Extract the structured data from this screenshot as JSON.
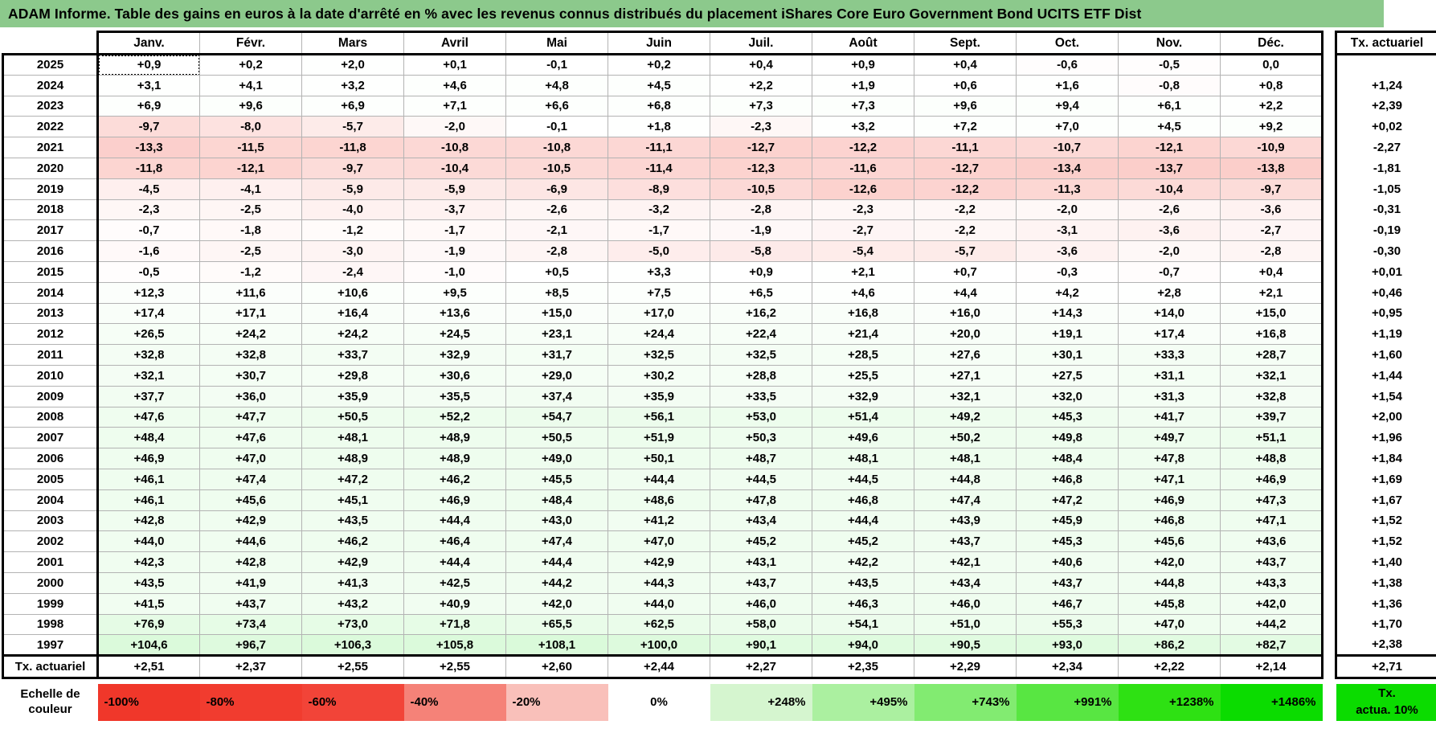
{
  "title": "ADAM Informe. Table des gains en euros à la date d'arrêté en % avec les revenus connus distribués du placement iShares Core Euro Government Bond UCITS ETF Dist",
  "columns": [
    "Janv.",
    "Févr.",
    "Mars",
    "Avril",
    "Mai",
    "Juin",
    "Juil.",
    "Août",
    "Sept.",
    "Oct.",
    "Nov.",
    "Déc."
  ],
  "sidebar": {
    "header": "Tx. actuariel"
  },
  "selected_cell": {
    "row": 0,
    "col": 0
  },
  "rows": [
    {
      "year": "2025",
      "values": [
        "+0,9",
        "+0,2",
        "+2,0",
        "+0,1",
        "-0,1",
        "+0,2",
        "+0,4",
        "+0,9",
        "+0,4",
        "-0,6",
        "-0,5",
        "0,0"
      ],
      "tx": ""
    },
    {
      "year": "2024",
      "values": [
        "+3,1",
        "+4,1",
        "+3,2",
        "+4,6",
        "+4,8",
        "+4,5",
        "+2,2",
        "+1,9",
        "+0,6",
        "+1,6",
        "-0,8",
        "+0,8"
      ],
      "tx": "+1,24"
    },
    {
      "year": "2023",
      "values": [
        "+6,9",
        "+9,6",
        "+6,9",
        "+7,1",
        "+6,6",
        "+6,8",
        "+7,3",
        "+7,3",
        "+9,6",
        "+9,4",
        "+6,1",
        "+2,2"
      ],
      "tx": "+2,39"
    },
    {
      "year": "2022",
      "values": [
        "-9,7",
        "-8,0",
        "-5,7",
        "-2,0",
        "-0,1",
        "+1,8",
        "-2,3",
        "+3,2",
        "+7,2",
        "+7,0",
        "+4,5",
        "+9,2"
      ],
      "tx": "+0,02"
    },
    {
      "year": "2021",
      "values": [
        "-13,3",
        "-11,5",
        "-11,8",
        "-10,8",
        "-10,8",
        "-11,1",
        "-12,7",
        "-12,2",
        "-11,1",
        "-10,7",
        "-12,1",
        "-10,9"
      ],
      "tx": "-2,27"
    },
    {
      "year": "2020",
      "values": [
        "-11,8",
        "-12,1",
        "-9,7",
        "-10,4",
        "-10,5",
        "-11,4",
        "-12,3",
        "-11,6",
        "-12,7",
        "-13,4",
        "-13,7",
        "-13,8"
      ],
      "tx": "-1,81"
    },
    {
      "year": "2019",
      "values": [
        "-4,5",
        "-4,1",
        "-5,9",
        "-5,9",
        "-6,9",
        "-8,9",
        "-10,5",
        "-12,6",
        "-12,2",
        "-11,3",
        "-10,4",
        "-9,7"
      ],
      "tx": "-1,05"
    },
    {
      "year": "2018",
      "values": [
        "-2,3",
        "-2,5",
        "-4,0",
        "-3,7",
        "-2,6",
        "-3,2",
        "-2,8",
        "-2,3",
        "-2,2",
        "-2,0",
        "-2,6",
        "-3,6"
      ],
      "tx": "-0,31"
    },
    {
      "year": "2017",
      "values": [
        "-0,7",
        "-1,8",
        "-1,2",
        "-1,7",
        "-2,1",
        "-1,7",
        "-1,9",
        "-2,7",
        "-2,2",
        "-3,1",
        "-3,6",
        "-2,7"
      ],
      "tx": "-0,19"
    },
    {
      "year": "2016",
      "values": [
        "-1,6",
        "-2,5",
        "-3,0",
        "-1,9",
        "-2,8",
        "-5,0",
        "-5,8",
        "-5,4",
        "-5,7",
        "-3,6",
        "-2,0",
        "-2,8"
      ],
      "tx": "-0,30"
    },
    {
      "year": "2015",
      "values": [
        "-0,5",
        "-1,2",
        "-2,4",
        "-1,0",
        "+0,5",
        "+3,3",
        "+0,9",
        "+2,1",
        "+0,7",
        "-0,3",
        "-0,7",
        "+0,4"
      ],
      "tx": "+0,01"
    },
    {
      "year": "2014",
      "values": [
        "+12,3",
        "+11,6",
        "+10,6",
        "+9,5",
        "+8,5",
        "+7,5",
        "+6,5",
        "+4,6",
        "+4,4",
        "+4,2",
        "+2,8",
        "+2,1"
      ],
      "tx": "+0,46"
    },
    {
      "year": "2013",
      "values": [
        "+17,4",
        "+17,1",
        "+16,4",
        "+13,6",
        "+15,0",
        "+17,0",
        "+16,2",
        "+16,8",
        "+16,0",
        "+14,3",
        "+14,0",
        "+15,0"
      ],
      "tx": "+0,95"
    },
    {
      "year": "2012",
      "values": [
        "+26,5",
        "+24,2",
        "+24,2",
        "+24,5",
        "+23,1",
        "+24,4",
        "+22,4",
        "+21,4",
        "+20,0",
        "+19,1",
        "+17,4",
        "+16,8"
      ],
      "tx": "+1,19"
    },
    {
      "year": "2011",
      "values": [
        "+32,8",
        "+32,8",
        "+33,7",
        "+32,9",
        "+31,7",
        "+32,5",
        "+32,5",
        "+28,5",
        "+27,6",
        "+30,1",
        "+33,3",
        "+28,7"
      ],
      "tx": "+1,60"
    },
    {
      "year": "2010",
      "values": [
        "+32,1",
        "+30,7",
        "+29,8",
        "+30,6",
        "+29,0",
        "+30,2",
        "+28,8",
        "+25,5",
        "+27,1",
        "+27,5",
        "+31,1",
        "+32,1"
      ],
      "tx": "+1,44"
    },
    {
      "year": "2009",
      "values": [
        "+37,7",
        "+36,0",
        "+35,9",
        "+35,5",
        "+37,4",
        "+35,9",
        "+33,5",
        "+32,9",
        "+32,1",
        "+32,0",
        "+31,3",
        "+32,8"
      ],
      "tx": "+1,54"
    },
    {
      "year": "2008",
      "values": [
        "+47,6",
        "+47,7",
        "+50,5",
        "+52,2",
        "+54,7",
        "+56,1",
        "+53,0",
        "+51,4",
        "+49,2",
        "+45,3",
        "+41,7",
        "+39,7"
      ],
      "tx": "+2,00"
    },
    {
      "year": "2007",
      "values": [
        "+48,4",
        "+47,6",
        "+48,1",
        "+48,9",
        "+50,5",
        "+51,9",
        "+50,3",
        "+49,6",
        "+50,2",
        "+49,8",
        "+49,7",
        "+51,1"
      ],
      "tx": "+1,96"
    },
    {
      "year": "2006",
      "values": [
        "+46,9",
        "+47,0",
        "+48,9",
        "+48,9",
        "+49,0",
        "+50,1",
        "+48,7",
        "+48,1",
        "+48,1",
        "+48,4",
        "+47,8",
        "+48,8"
      ],
      "tx": "+1,84"
    },
    {
      "year": "2005",
      "values": [
        "+46,1",
        "+47,4",
        "+47,2",
        "+46,2",
        "+45,5",
        "+44,4",
        "+44,5",
        "+44,5",
        "+44,8",
        "+46,8",
        "+47,1",
        "+46,9"
      ],
      "tx": "+1,69"
    },
    {
      "year": "2004",
      "values": [
        "+46,1",
        "+45,6",
        "+45,1",
        "+46,9",
        "+48,4",
        "+48,6",
        "+47,8",
        "+46,8",
        "+47,4",
        "+47,2",
        "+46,9",
        "+47,3"
      ],
      "tx": "+1,67"
    },
    {
      "year": "2003",
      "values": [
        "+42,8",
        "+42,9",
        "+43,5",
        "+44,4",
        "+43,0",
        "+41,2",
        "+43,4",
        "+44,4",
        "+43,9",
        "+45,9",
        "+46,8",
        "+47,1"
      ],
      "tx": "+1,52"
    },
    {
      "year": "2002",
      "values": [
        "+44,0",
        "+44,6",
        "+46,2",
        "+46,4",
        "+47,4",
        "+47,0",
        "+45,2",
        "+45,2",
        "+43,7",
        "+45,3",
        "+45,6",
        "+43,6"
      ],
      "tx": "+1,52"
    },
    {
      "year": "2001",
      "values": [
        "+42,3",
        "+42,8",
        "+42,9",
        "+44,4",
        "+44,4",
        "+42,9",
        "+43,1",
        "+42,2",
        "+42,1",
        "+40,6",
        "+42,0",
        "+43,7"
      ],
      "tx": "+1,40"
    },
    {
      "year": "2000",
      "values": [
        "+43,5",
        "+41,9",
        "+41,3",
        "+42,5",
        "+44,2",
        "+44,3",
        "+43,7",
        "+43,5",
        "+43,4",
        "+43,7",
        "+44,8",
        "+43,3"
      ],
      "tx": "+1,38"
    },
    {
      "year": "1999",
      "values": [
        "+41,5",
        "+43,7",
        "+43,2",
        "+40,9",
        "+42,0",
        "+44,0",
        "+46,0",
        "+46,3",
        "+46,0",
        "+46,7",
        "+45,8",
        "+42,0"
      ],
      "tx": "+1,36"
    },
    {
      "year": "1998",
      "values": [
        "+76,9",
        "+73,4",
        "+73,0",
        "+71,8",
        "+65,5",
        "+62,5",
        "+58,0",
        "+54,1",
        "+51,0",
        "+55,3",
        "+47,0",
        "+44,2"
      ],
      "tx": "+1,70"
    },
    {
      "year": "1997",
      "values": [
        "+104,6",
        "+96,7",
        "+106,3",
        "+105,8",
        "+108,1",
        "+100,0",
        "+90,1",
        "+94,0",
        "+90,5",
        "+93,0",
        "+86,2",
        "+82,7"
      ],
      "tx": "+2,38"
    }
  ],
  "footer_row": {
    "label": "Tx. actuariel",
    "values": [
      "+2,51",
      "+2,37",
      "+2,55",
      "+2,55",
      "+2,60",
      "+2,44",
      "+2,27",
      "+2,35",
      "+2,29",
      "+2,34",
      "+2,22",
      "+2,14"
    ],
    "tx": "+2,71"
  },
  "legend": {
    "row_label_line1": "Echelle de",
    "row_label_line2": "couleur",
    "items": [
      {
        "label": "-100%",
        "color": "#F0372A",
        "align": "left"
      },
      {
        "label": "-80%",
        "color": "#F13C2F",
        "align": "left"
      },
      {
        "label": "-60%",
        "color": "#F24438",
        "align": "left"
      },
      {
        "label": "-40%",
        "color": "#F58278",
        "align": "left"
      },
      {
        "label": "-20%",
        "color": "#F9C0BA",
        "align": "left"
      },
      {
        "label": "0%",
        "color": "#FFFFFF",
        "align": "center"
      },
      {
        "label": "+248%",
        "color": "#D5F5CF",
        "align": "right"
      },
      {
        "label": "+495%",
        "color": "#ABF0A0",
        "align": "right"
      },
      {
        "label": "+743%",
        "color": "#82EB71",
        "align": "right"
      },
      {
        "label": "+991%",
        "color": "#58E642",
        "align": "right"
      },
      {
        "label": "+1238%",
        "color": "#2EE113",
        "align": "right"
      },
      {
        "label": "+1486%",
        "color": "#0BDC00",
        "align": "right"
      }
    ],
    "tx_box_line1": "Tx.",
    "tx_box_line2": "actua. 10%",
    "tx_box_color": "#0BDC00"
  },
  "colors": {
    "title_bg": "#8CC98C",
    "negative_full": "#F03828",
    "positive_full": "#00DC00",
    "grid_line": "#B3B3B3"
  }
}
